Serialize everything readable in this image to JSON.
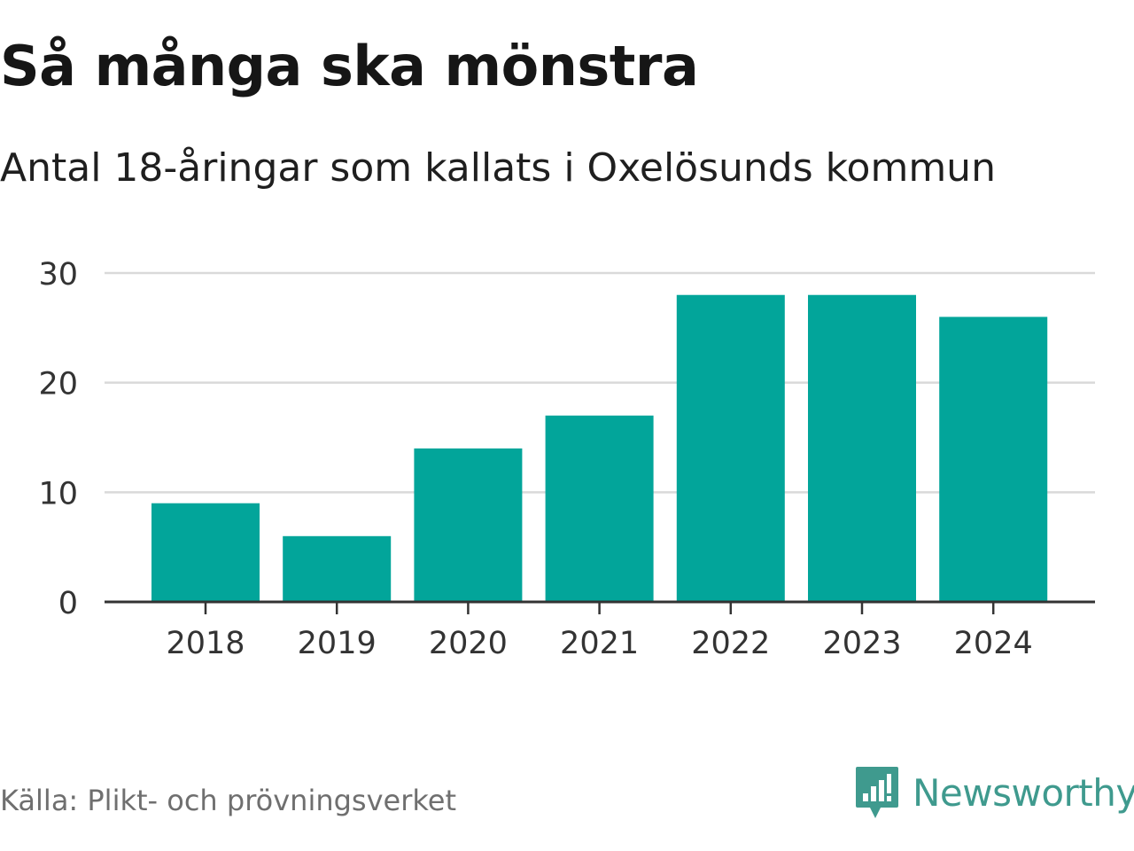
{
  "header": {
    "title": "Så många ska mönstra",
    "subtitle": "Antal 18-åringar som kallats i Oxelösunds kommun"
  },
  "footer": {
    "source": "Källa: Plikt- och prövningsverket",
    "brand": "Newsworthy"
  },
  "colors": {
    "bar": "#02a59a",
    "grid": "#d9d9d9",
    "axis": "#333333",
    "brand": "#3f9a8e"
  },
  "chart_data": {
    "type": "bar",
    "title": "Så många ska mönstra",
    "subtitle": "Antal 18-åringar som kallats i Oxelösunds kommun",
    "xlabel": "",
    "ylabel": "",
    "categories": [
      "2018",
      "2019",
      "2020",
      "2021",
      "2022",
      "2023",
      "2024"
    ],
    "values": [
      9,
      6,
      14,
      17,
      28,
      28,
      26
    ],
    "ylim": [
      0,
      30
    ],
    "yticks": [
      0,
      10,
      20,
      30
    ],
    "grid": true,
    "legend": "none"
  }
}
